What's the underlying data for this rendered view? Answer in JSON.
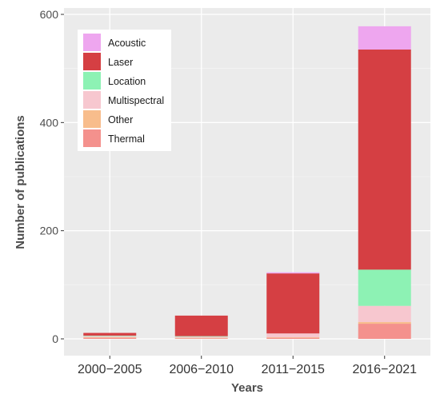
{
  "chart_data": {
    "type": "bar",
    "stacked": true,
    "xlabel": "Years",
    "ylabel": "Number of publications",
    "ylim": [
      0,
      600
    ],
    "yticks": [
      0,
      200,
      400,
      600
    ],
    "grid": true,
    "legend_position": "top-left",
    "categories": [
      "2000−2005",
      "2006−2010",
      "2011−2015",
      "2016−2021"
    ],
    "series": [
      {
        "name": "Thermal",
        "color": "#f4918d",
        "values": [
          2,
          1,
          2,
          28
        ]
      },
      {
        "name": "Other",
        "color": "#f8bd8c",
        "values": [
          1,
          1,
          1,
          3
        ]
      },
      {
        "name": "Multispectral",
        "color": "#f7c7cf",
        "values": [
          2,
          2,
          7,
          30
        ]
      },
      {
        "name": "Location",
        "color": "#8df2b4",
        "values": [
          1,
          1,
          0,
          67
        ]
      },
      {
        "name": "Laser",
        "color": "#d53f43",
        "values": [
          5,
          38,
          111,
          407
        ]
      },
      {
        "name": "Acoustic",
        "color": "#eea6ef",
        "values": [
          0,
          0,
          2,
          43
        ]
      }
    ],
    "legend_order": [
      "Acoustic",
      "Laser",
      "Location",
      "Multispectral",
      "Other",
      "Thermal"
    ]
  }
}
